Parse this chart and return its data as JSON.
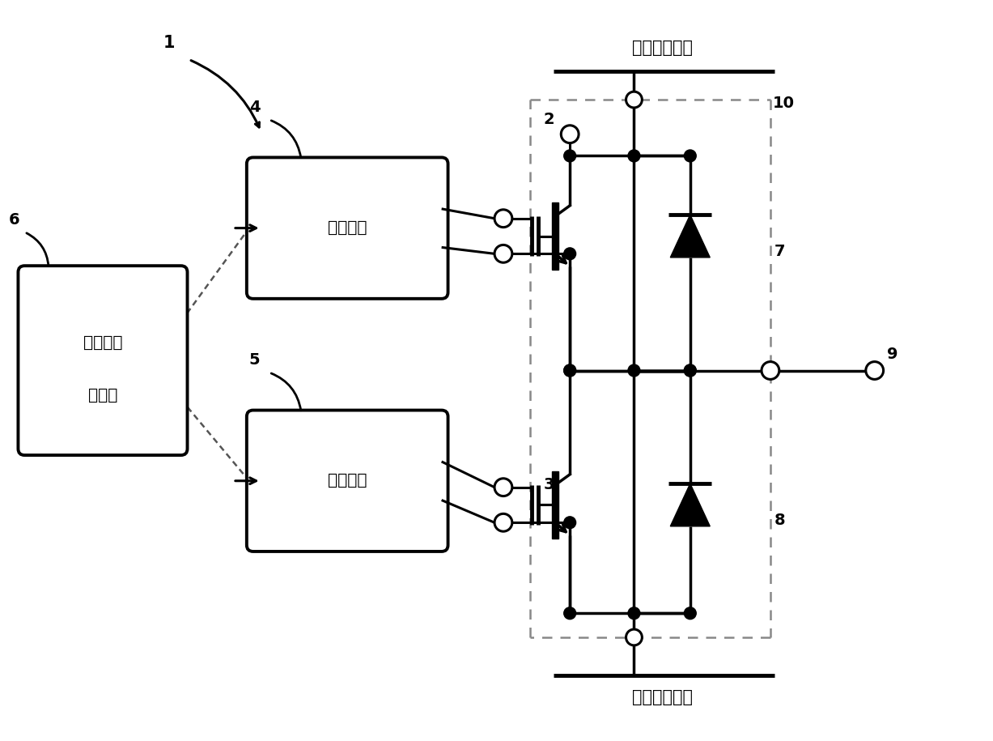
{
  "bg_color": "#ffffff",
  "line_color": "#000000",
  "label_1": "1",
  "label_2": "2",
  "label_3": "3",
  "label_4": "4",
  "label_5": "5",
  "label_6": "6",
  "label_7": "7",
  "label_8": "8",
  "label_9": "9",
  "label_10": "10",
  "text_upper": "高电位侧电源",
  "text_lower": "低电位侧电源",
  "text_drive": "驱动电路",
  "text_control_1": "上级控制",
  "text_control_2": "电路部",
  "figsize": [
    12.27,
    9.15
  ],
  "dpi": 100
}
